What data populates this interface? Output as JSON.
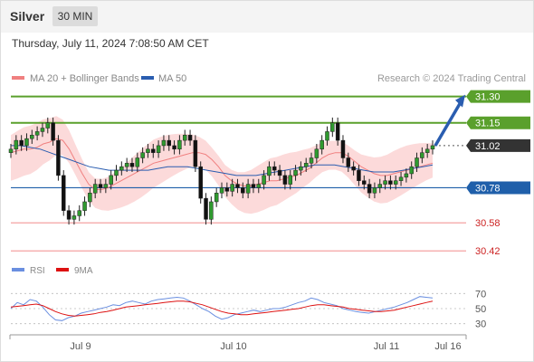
{
  "header": {
    "symbol": "Silver",
    "timeframe": "30 MIN"
  },
  "timestamp": "Thursday, July 11, 2024 7:08:50 AM CET",
  "legend": {
    "ma20_label": "MA 20 + Bollinger Bands",
    "ma50_label": "MA 50",
    "credit": "Research © 2024 Trading Central",
    "rsi_label": "RSI",
    "rsi_ma_label": "9MA"
  },
  "colors": {
    "bollinger_fill": "#fbd4d4",
    "ma20": "#f08080",
    "ma50": "#2a5db0",
    "resistance": "#5aa02c",
    "pivot": "#1f5faa",
    "support": "#f4a3a3",
    "support_text": "#cc2222",
    "candle": "#2f9a2f",
    "rsi": "#6a8fe0",
    "rsi_ma": "#dd1111",
    "arrow": "#2a5db0"
  },
  "chart_data": [
    {
      "type": "candlestick",
      "title": "Silver",
      "timeframe": "30 MIN",
      "ylim": [
        30.38,
        31.36
      ],
      "x_ticks": [
        "Jul 9",
        "Jul 10",
        "Jul 11",
        "Jul 16"
      ],
      "levels": [
        {
          "label": "31.30",
          "value": 31.3,
          "kind": "resistance"
        },
        {
          "label": "31.15",
          "value": 31.15,
          "kind": "resistance"
        },
        {
          "label": "31.02",
          "value": 31.02,
          "kind": "last"
        },
        {
          "label": "30.78",
          "value": 30.78,
          "kind": "pivot"
        },
        {
          "label": "30.58",
          "value": 30.58,
          "kind": "support"
        },
        {
          "label": "30.42",
          "value": 30.42,
          "kind": "support"
        }
      ],
      "target_arrow": {
        "from": 31.02,
        "to": 31.3
      },
      "closes": [
        31.0,
        31.05,
        31.02,
        31.06,
        31.08,
        31.1,
        31.12,
        31.15,
        31.05,
        30.85,
        30.65,
        30.6,
        30.62,
        30.65,
        30.7,
        30.75,
        30.8,
        30.78,
        30.8,
        30.85,
        30.88,
        30.9,
        30.92,
        30.9,
        30.95,
        30.98,
        31.0,
        30.98,
        31.02,
        31.05,
        31.02,
        31.0,
        31.05,
        31.08,
        31.05,
        30.9,
        30.72,
        30.6,
        30.7,
        30.75,
        30.78,
        30.76,
        30.8,
        30.78,
        30.75,
        30.8,
        30.78,
        30.8,
        30.85,
        30.9,
        30.88,
        30.85,
        30.8,
        30.85,
        30.88,
        30.9,
        30.92,
        30.95,
        31.0,
        31.05,
        31.1,
        31.15,
        31.05,
        30.95,
        30.9,
        30.88,
        30.82,
        30.8,
        30.75,
        30.78,
        30.8,
        30.82,
        30.8,
        30.82,
        30.84,
        30.86,
        30.9,
        30.95,
        30.98,
        31.0,
        31.02
      ],
      "series": [
        {
          "name": "MA 20",
          "values": [
            30.98,
            30.99,
            31.0,
            31.0,
            31.01,
            31.03,
            31.04,
            31.06,
            31.05,
            31.0,
            30.93,
            30.86,
            30.8,
            30.77,
            30.77,
            30.78,
            30.8,
            30.82,
            30.84,
            30.86,
            30.88,
            30.9,
            30.92,
            30.93,
            30.94,
            30.95,
            30.96,
            30.97,
            30.98,
            30.98,
            30.97,
            30.94,
            30.9,
            30.85,
            30.82,
            30.8,
            30.79,
            30.79,
            30.8,
            30.81,
            30.82,
            30.82,
            30.83,
            30.84,
            30.85,
            30.87,
            30.89,
            30.92,
            30.95,
            30.97,
            30.98,
            30.98,
            30.96,
            30.93,
            30.9,
            30.88,
            30.86,
            30.85,
            30.85,
            30.86,
            30.87,
            30.88,
            30.89,
            30.9,
            30.91,
            30.92
          ]
        },
        {
          "name": "MA 50",
          "values": [
            31.02,
            31.02,
            31.01,
            31.0,
            30.98,
            30.96,
            30.94,
            30.92,
            30.9,
            30.89,
            30.88,
            30.88,
            30.88,
            30.88,
            30.88,
            30.89,
            30.9,
            30.9,
            30.9,
            30.89,
            30.88,
            30.87,
            30.86,
            30.85,
            30.85,
            30.85,
            30.86,
            30.87,
            30.88,
            30.89,
            30.9,
            30.91,
            30.91,
            30.91,
            30.9,
            30.89,
            30.88,
            30.87,
            30.87,
            30.87,
            30.88,
            30.89,
            30.9,
            30.91
          ]
        }
      ]
    },
    {
      "type": "line",
      "ylim": [
        20,
        80
      ],
      "y_ticks": [
        70,
        50,
        30
      ],
      "series": [
        {
          "name": "RSI",
          "values": [
            50,
            58,
            55,
            62,
            60,
            52,
            42,
            35,
            34,
            38,
            40,
            44,
            46,
            48,
            50,
            52,
            55,
            54,
            58,
            60,
            58,
            56,
            60,
            62,
            63,
            64,
            65,
            64,
            60,
            55,
            50,
            46,
            40,
            36,
            38,
            42,
            44,
            46,
            48,
            46,
            48,
            50,
            50,
            52,
            55,
            58,
            60,
            64,
            62,
            58,
            56,
            54,
            50,
            48,
            46,
            45,
            44,
            46,
            48,
            50,
            52,
            55,
            58,
            62,
            66,
            65,
            64
          ]
        },
        {
          "name": "9MA",
          "values": [
            52,
            53,
            54,
            55,
            56,
            54,
            50,
            46,
            43,
            41,
            40,
            41,
            42,
            43,
            45,
            46,
            48,
            50,
            52,
            53,
            54,
            55,
            56,
            57,
            58,
            59,
            60,
            60,
            59,
            57,
            55,
            52,
            49,
            46,
            44,
            43,
            42,
            42,
            43,
            44,
            45,
            46,
            47,
            48,
            49,
            50,
            52,
            54,
            55,
            55,
            54,
            53,
            52,
            50,
            49,
            48,
            47,
            46,
            46,
            47,
            48,
            50,
            52,
            54,
            56,
            58,
            60
          ]
        }
      ]
    }
  ]
}
